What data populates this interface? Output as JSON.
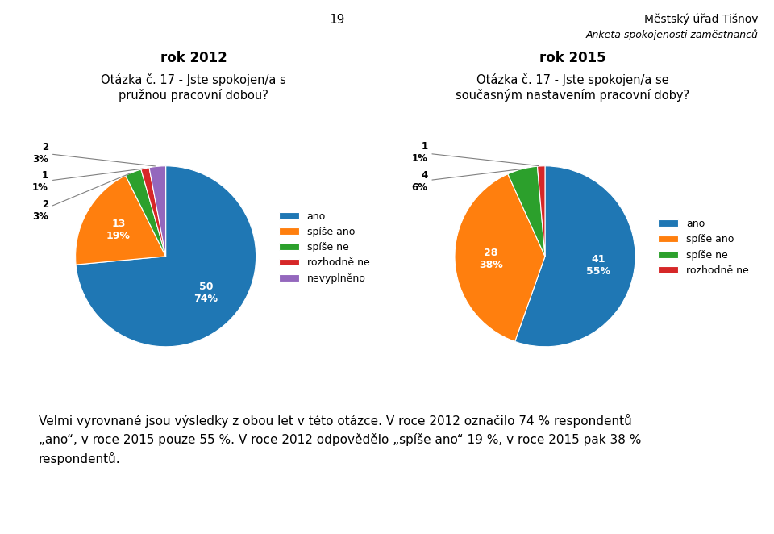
{
  "header": [
    "19",
    "Městský úřad Tišnov",
    "Anketa spokojenosti zaměstnanců"
  ],
  "annotations": [
    "Velmi vyrovnané jsou výsledky z obou let v této otázce. V roce 2012 označilo 74 % respondentů\n„ano“, v roce 2015 pouze 55 %. V roce 2012 odpovědělo „spíše ano“ 19 %, v roce 2015 pak 38 %\nrespondentů."
  ],
  "chart_data": [
    {
      "type": "pie",
      "subtitle": "rok 2012",
      "title": "Otázka č. 17 - Jste spokojen/a s\npružnou pracovní dobou?",
      "categories": [
        "ano",
        "spíše ano",
        "spíše ne",
        "rozhodně ne",
        "nevyplněno"
      ],
      "values": [
        50,
        13,
        2,
        1,
        2
      ],
      "value_labels": [
        "50\n74%",
        "13\n19%",
        "2\n3%",
        "1\n1%",
        "2\n3%"
      ],
      "data_labels": true,
      "legend": "center left"
    },
    {
      "type": "pie",
      "subtitle": "rok 2015",
      "title": "Otázka č. 17 - Jste spokojen/a se\nsoučasným nastavením pracovní doby?",
      "categories": [
        "ano",
        "spíše ano",
        "spíše ne",
        "rozhodně ne"
      ],
      "values": [
        41,
        28,
        4,
        1
      ],
      "value_labels": [
        "41\n55%",
        "28\n38%",
        "4\n6%",
        "1\n1%"
      ],
      "data_labels": true,
      "legend": "center left"
    }
  ]
}
